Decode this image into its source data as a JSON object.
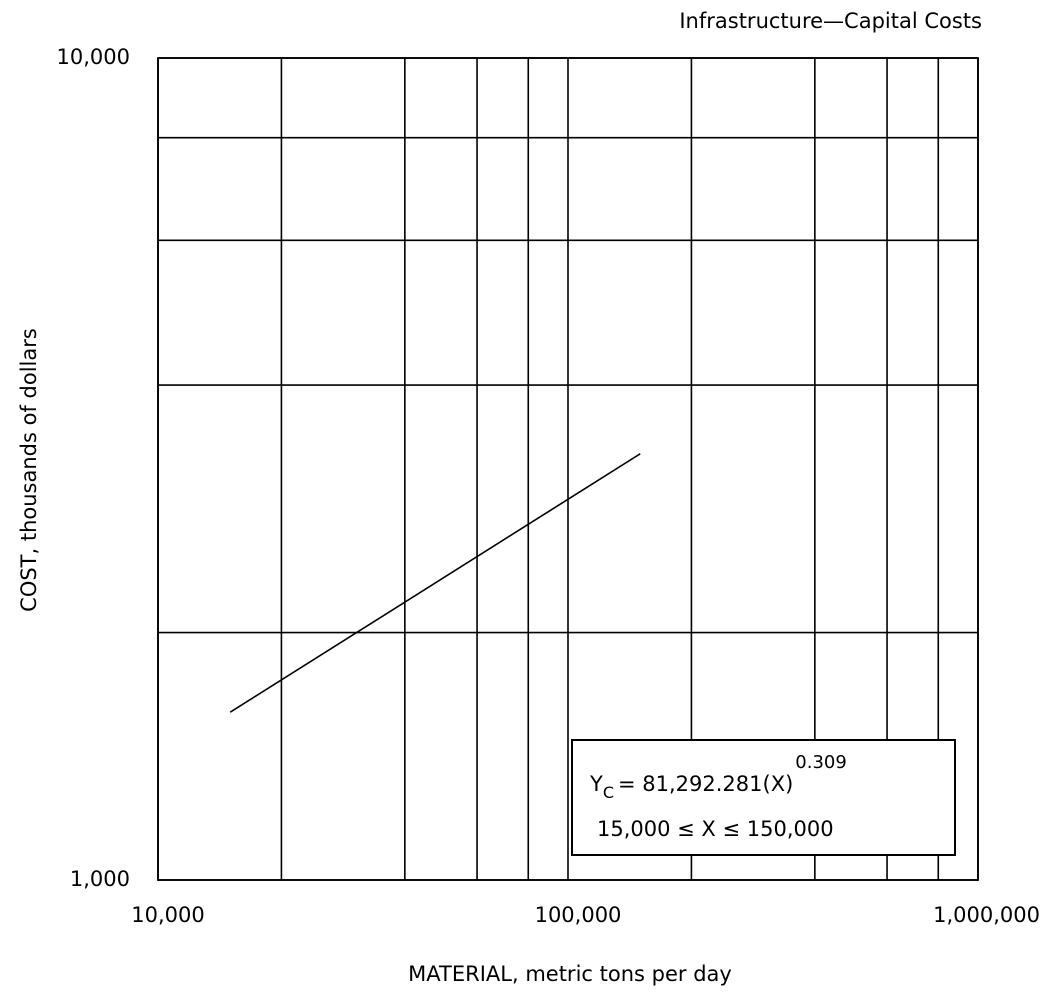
{
  "chart_data": {
    "type": "line",
    "title": "Infrastructure—Capital Costs",
    "xlabel": "MATERIAL, metric tons per day",
    "ylabel": "COST, thousands of dollars",
    "xscale": "log",
    "yscale": "log",
    "xlim": [
      10000,
      1000000
    ],
    "ylim": [
      1000,
      10000
    ],
    "xticks": [
      {
        "value": 10000,
        "label": "10,000"
      },
      {
        "value": 100000,
        "label": "100,000"
      },
      {
        "value": 1000000,
        "label": "1,000,000"
      }
    ],
    "yticks": [
      {
        "value": 1000,
        "label": "1,000"
      },
      {
        "value": 10000,
        "label": "10,000"
      }
    ],
    "xgrid_minor": [
      20000,
      40000,
      60000,
      80000,
      200000,
      400000,
      600000,
      800000
    ],
    "ygrid_minor": [
      2000,
      4000,
      6000,
      8000
    ],
    "grid": true,
    "x": [
      15000,
      150000
    ],
    "series": [
      {
        "color": "#000000",
        "values": [
          1600,
          3300
        ]
      }
    ],
    "annotation": {
      "y": "Y",
      "sub": "C",
      "eq": "= 81,292.281(X)",
      "sup": "0.309",
      "range": "15,000 ≤ X ≤ 150,000"
    }
  }
}
